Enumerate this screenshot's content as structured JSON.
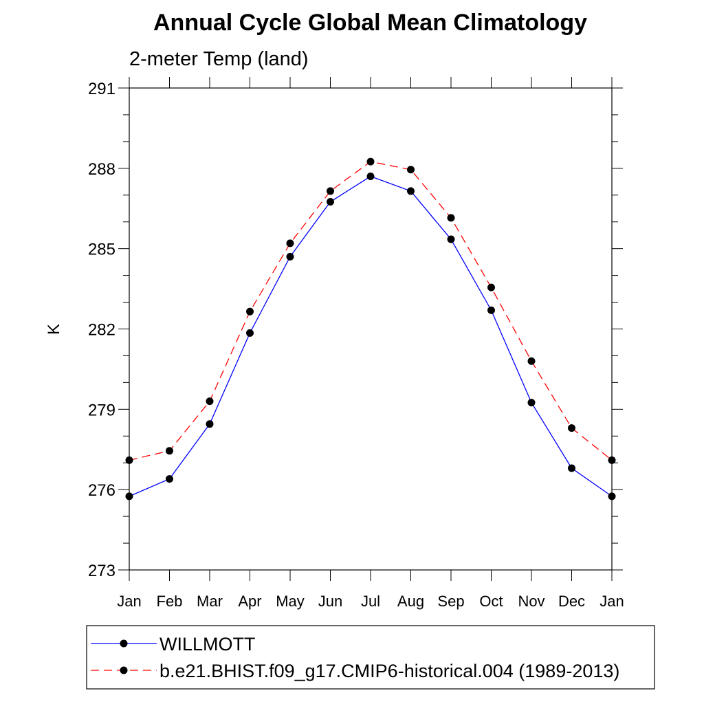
{
  "chart_data": {
    "type": "line",
    "title": "Annual Cycle Global Mean Climatology",
    "subtitle": "2-meter Temp (land)",
    "xlabel": "",
    "ylabel": "K",
    "categories": [
      "Jan",
      "Feb",
      "Mar",
      "Apr",
      "May",
      "Jun",
      "Jul",
      "Aug",
      "Sep",
      "Oct",
      "Nov",
      "Dec",
      "Jan"
    ],
    "ylim": [
      273,
      291
    ],
    "yticks": [
      273,
      276,
      279,
      282,
      285,
      288,
      291
    ],
    "yticks_minor_step": 1,
    "grid": false,
    "legend_placement": "bottom",
    "series": [
      {
        "name": "WILLMOTT",
        "color": "#0000ff",
        "line_style": "solid",
        "marker": "filled-circle",
        "values": [
          275.75,
          276.4,
          278.45,
          281.85,
          284.7,
          286.75,
          287.7,
          287.15,
          285.35,
          282.7,
          279.25,
          276.8,
          275.75
        ]
      },
      {
        "name": "b.e21.BHIST.f09_g17.CMIP6-historical.004 (1989-2013)",
        "color": "#ff0000",
        "line_style": "dashed",
        "marker": "filled-circle",
        "values": [
          277.1,
          277.45,
          279.3,
          282.65,
          285.2,
          287.15,
          288.25,
          287.95,
          286.15,
          283.55,
          280.8,
          278.3,
          277.1
        ]
      }
    ]
  }
}
